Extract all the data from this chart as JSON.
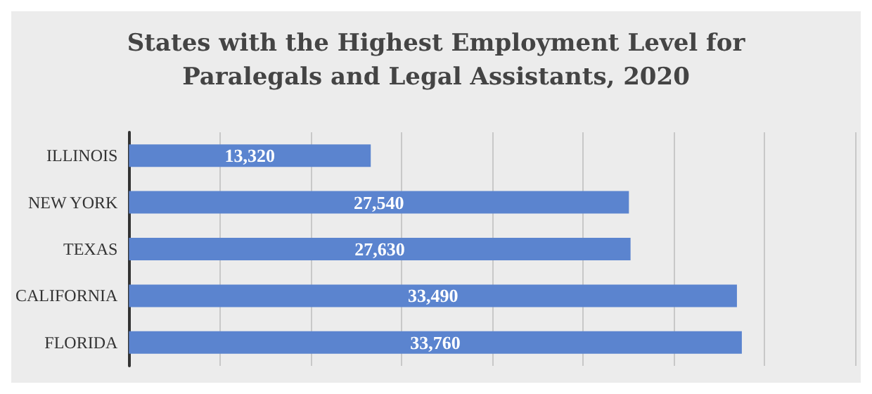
{
  "chart_data": {
    "type": "bar",
    "orientation": "horizontal",
    "title": "States with the Highest Employment Level for\nParalegals and Legal Assistants, 2020",
    "categories": [
      "ILLINOIS",
      "NEW YORK",
      "TEXAS",
      "CALIFORNIA",
      "FLORIDA"
    ],
    "values": [
      13320,
      27540,
      27630,
      33490,
      33760
    ],
    "value_labels": [
      "13,320",
      "27,540",
      "27,630",
      "33,490",
      "33,760"
    ],
    "color": "#5b84cf",
    "xlim": [
      0,
      40000
    ],
    "xticks": [
      {
        "value": 0,
        "label": null
      },
      {
        "value": 5000,
        "label": null
      },
      {
        "value": 10000,
        "label": null
      },
      {
        "value": 15000,
        "label": null
      },
      {
        "value": 20000,
        "label": null
      },
      {
        "value": 25000,
        "label": null
      },
      {
        "value": 30000,
        "label": null
      },
      {
        "value": 35000,
        "label": null
      },
      {
        "value": 40000,
        "label": null
      }
    ],
    "grid": "x",
    "tick_labels": "y"
  }
}
